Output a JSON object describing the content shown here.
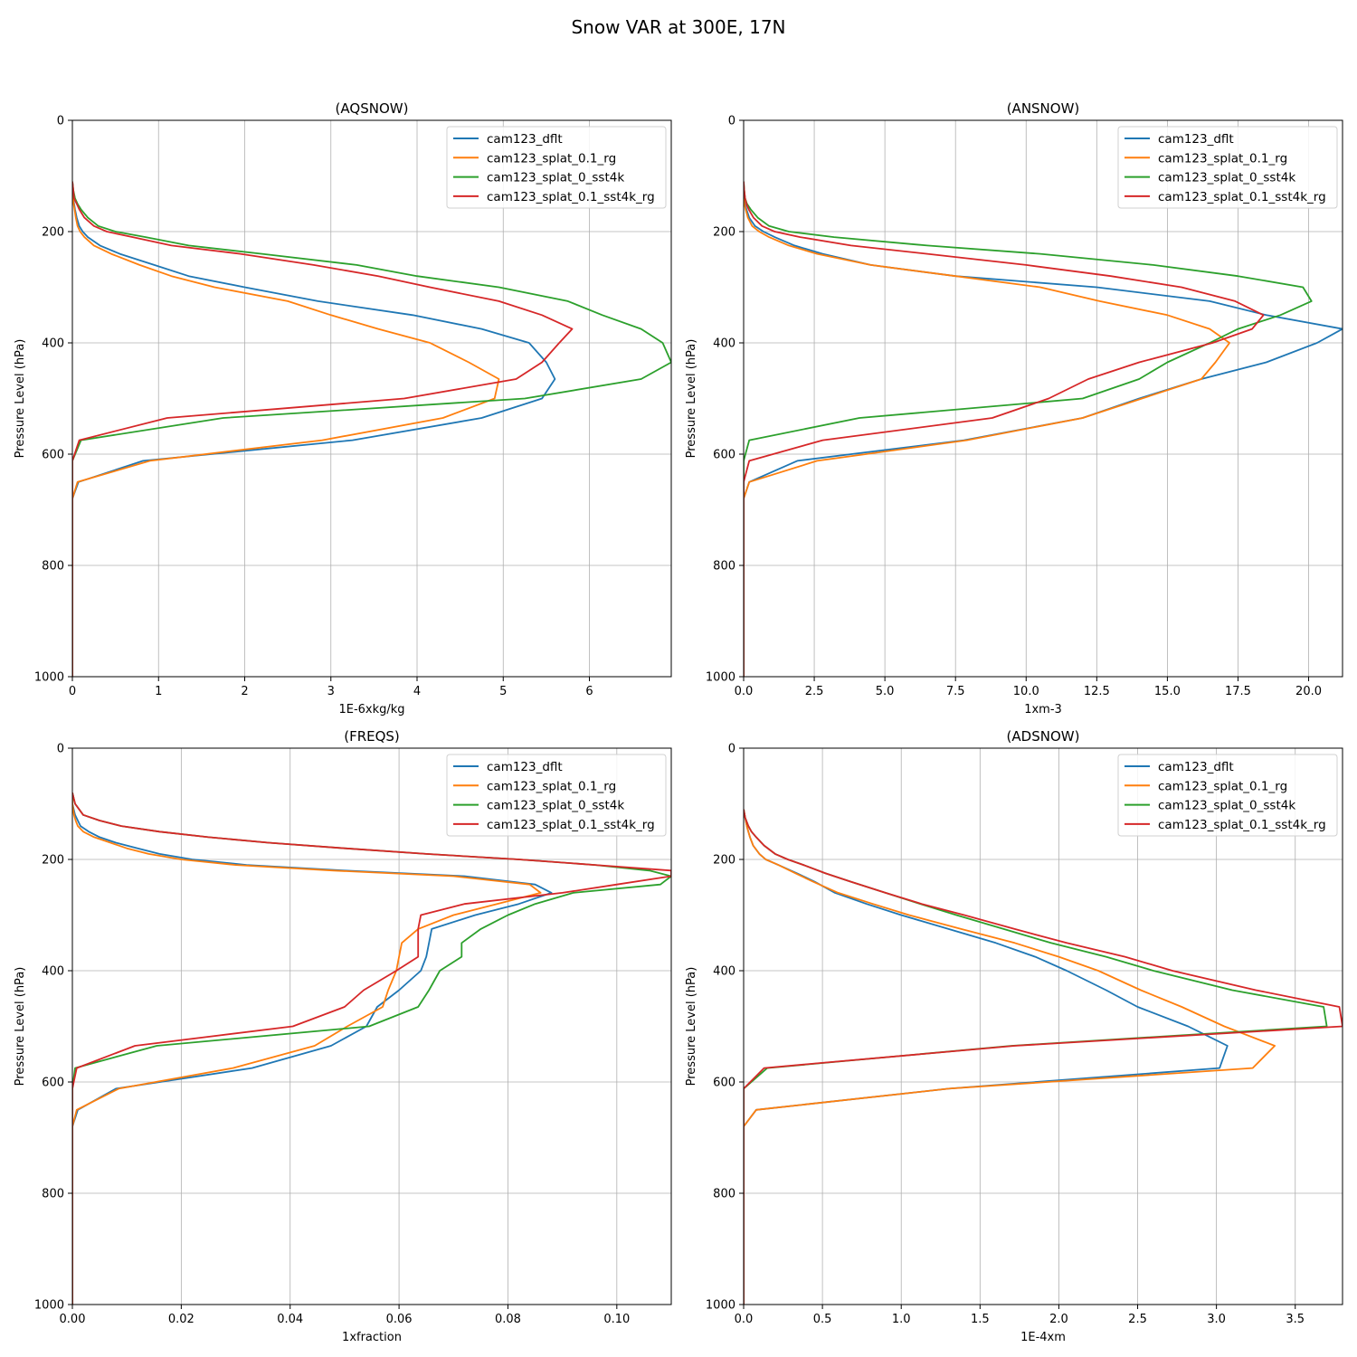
{
  "figure": {
    "title": "Snow VAR at 300E, 17N"
  },
  "colors": {
    "dflt": "#1f77b4",
    "rg": "#ff7f0e",
    "sst4k": "#2ca02c",
    "sst4k_rg": "#d62728"
  },
  "legend_labels": [
    "cam123_dflt",
    "cam123_splat_0.1_rg",
    "cam123_splat_0_sst4k",
    "cam123_splat_0.1_sst4k_rg"
  ],
  "chart_data": [
    {
      "type": "line",
      "title": "(AQSNOW)",
      "xlabel": "1E-6xkg/kg",
      "ylabel": "Pressure Level (hPa)",
      "xlim": [
        0,
        6.95
      ],
      "ylim": [
        1000,
        0
      ],
      "xticks": [
        0,
        1,
        2,
        3,
        4,
        5,
        6
      ],
      "xtick_labels": [
        "0",
        "1",
        "2",
        "3",
        "4",
        "5",
        "6"
      ],
      "yticks": [
        0,
        200,
        400,
        600,
        800,
        1000
      ],
      "ytick_labels": [
        "0",
        "200",
        "400",
        "600",
        "800",
        "1000"
      ],
      "grid": true,
      "legend": "top-right",
      "y": [
        110,
        125,
        140,
        150,
        160,
        175,
        190,
        200,
        210,
        225,
        240,
        260,
        280,
        300,
        325,
        350,
        375,
        400,
        435,
        465,
        500,
        535,
        575,
        612,
        650,
        680,
        700,
        800,
        900,
        1000
      ],
      "series": [
        {
          "name": "cam123_dflt",
          "color": "dflt",
          "values": [
            0,
            0.005,
            0.01,
            0.02,
            0.03,
            0.05,
            0.08,
            0.12,
            0.18,
            0.32,
            0.55,
            0.95,
            1.35,
            2.0,
            2.85,
            3.95,
            4.75,
            5.3,
            5.5,
            5.6,
            5.45,
            4.75,
            3.25,
            0.82,
            0.07,
            0,
            0,
            0,
            0,
            0
          ]
        },
        {
          "name": "cam123_splat_0.1_rg",
          "color": "rg",
          "values": [
            0,
            0.004,
            0.008,
            0.015,
            0.025,
            0.04,
            0.06,
            0.09,
            0.14,
            0.25,
            0.45,
            0.78,
            1.15,
            1.65,
            2.5,
            3.0,
            3.55,
            4.15,
            4.6,
            4.95,
            4.9,
            4.3,
            2.9,
            0.9,
            0.06,
            0,
            0,
            0,
            0,
            0
          ]
        },
        {
          "name": "cam123_splat_0_sst4k",
          "color": "sst4k",
          "values": [
            0,
            0.01,
            0.03,
            0.06,
            0.1,
            0.18,
            0.3,
            0.5,
            0.85,
            1.35,
            2.2,
            3.3,
            4.0,
            4.95,
            5.75,
            6.15,
            6.6,
            6.85,
            6.95,
            6.6,
            5.25,
            1.75,
            0.1,
            0,
            0,
            0,
            0,
            0,
            0,
            0
          ]
        },
        {
          "name": "cam123_splat_0.1_sst4k_rg",
          "color": "sst4k_rg",
          "values": [
            0,
            0.01,
            0.02,
            0.05,
            0.08,
            0.14,
            0.25,
            0.4,
            0.7,
            1.15,
            1.95,
            2.8,
            3.55,
            4.15,
            4.95,
            5.45,
            5.8,
            5.65,
            5.45,
            5.15,
            3.85,
            1.1,
            0.08,
            0,
            0,
            0,
            0,
            0,
            0,
            0
          ]
        }
      ]
    },
    {
      "type": "line",
      "title": "(ANSNOW)",
      "xlabel": "1xm-3",
      "ylabel": "Pressure Level (hPa)",
      "xlim": [
        0,
        21.2
      ],
      "ylim": [
        1000,
        0
      ],
      "xticks": [
        0,
        2.5,
        5,
        7.5,
        10,
        12.5,
        15,
        17.5,
        20
      ],
      "xtick_labels": [
        "0.0",
        "2.5",
        "5.0",
        "7.5",
        "10.0",
        "12.5",
        "15.0",
        "17.5",
        "20.0"
      ],
      "yticks": [
        0,
        200,
        400,
        600,
        800,
        1000
      ],
      "ytick_labels": [
        "0",
        "200",
        "400",
        "600",
        "800",
        "1000"
      ],
      "grid": true,
      "legend": "top-right",
      "y": [
        110,
        125,
        140,
        150,
        160,
        175,
        190,
        200,
        210,
        225,
        240,
        260,
        280,
        300,
        325,
        350,
        375,
        400,
        435,
        465,
        500,
        535,
        575,
        612,
        650,
        680,
        700,
        800,
        900,
        1000
      ],
      "series": [
        {
          "name": "cam123_dflt",
          "color": "dflt",
          "values": [
            0,
            0,
            0.02,
            0.05,
            0.1,
            0.2,
            0.4,
            0.7,
            1.1,
            1.8,
            2.8,
            4.5,
            7.5,
            12.5,
            16.5,
            18.5,
            21.2,
            20.3,
            18.5,
            16.2,
            14.0,
            12.0,
            7.8,
            1.9,
            0.2,
            0,
            0,
            0,
            0,
            0
          ]
        },
        {
          "name": "cam123_splat_0.1_rg",
          "color": "rg",
          "values": [
            0,
            0,
            0.01,
            0.03,
            0.07,
            0.15,
            0.3,
            0.55,
            0.9,
            1.6,
            2.6,
            4.5,
            7.5,
            10.5,
            12.6,
            15.0,
            16.5,
            17.2,
            16.7,
            16.2,
            14.1,
            12.0,
            7.9,
            2.6,
            0.2,
            0,
            0,
            0,
            0,
            0
          ]
        },
        {
          "name": "cam123_splat_0_sst4k",
          "color": "sst4k",
          "values": [
            0,
            0.02,
            0.05,
            0.12,
            0.25,
            0.5,
            0.9,
            1.6,
            3.2,
            6.5,
            10.5,
            14.5,
            17.5,
            19.8,
            20.1,
            19.0,
            17.5,
            16.5,
            15.0,
            14.0,
            12.0,
            4.1,
            0.2,
            0,
            0,
            0,
            0,
            0,
            0,
            0
          ]
        },
        {
          "name": "cam123_splat_0.1_sst4k_rg",
          "color": "sst4k_rg",
          "values": [
            0,
            0.02,
            0.05,
            0.1,
            0.18,
            0.35,
            0.65,
            1.1,
            2.0,
            3.8,
            6.5,
            10.0,
            13.0,
            15.5,
            17.4,
            18.4,
            18.0,
            16.6,
            14.0,
            12.2,
            10.8,
            8.8,
            2.8,
            0.2,
            0,
            0,
            0,
            0,
            0,
            0
          ]
        }
      ]
    },
    {
      "type": "line",
      "title": "(FREQS)",
      "xlabel": "1xfraction",
      "ylabel": "Pressure Level (hPa)",
      "xlim": [
        0,
        0.11
      ],
      "ylim": [
        1000,
        0
      ],
      "xticks": [
        0,
        0.02,
        0.04,
        0.06,
        0.08,
        0.1
      ],
      "xtick_labels": [
        "0.00",
        "0.02",
        "0.04",
        "0.06",
        "0.08",
        "0.10"
      ],
      "yticks": [
        0,
        200,
        400,
        600,
        800,
        1000
      ],
      "ytick_labels": [
        "0",
        "200",
        "400",
        "600",
        "800",
        "1000"
      ],
      "grid": true,
      "legend": "top-right",
      "y": [
        80,
        100,
        120,
        130,
        140,
        150,
        160,
        170,
        180,
        190,
        200,
        210,
        220,
        230,
        245,
        260,
        280,
        300,
        325,
        350,
        375,
        400,
        435,
        465,
        500,
        535,
        575,
        612,
        650,
        680,
        700,
        800,
        900,
        1000
      ],
      "series": [
        {
          "name": "cam123_dflt",
          "color": "dflt",
          "values": [
            0,
            0,
            0.0005,
            0.001,
            0.0015,
            0.003,
            0.005,
            0.008,
            0.012,
            0.016,
            0.022,
            0.032,
            0.05,
            0.072,
            0.085,
            0.088,
            0.082,
            0.074,
            0.066,
            0.0655,
            0.065,
            0.064,
            0.06,
            0.056,
            0.054,
            0.0475,
            0.033,
            0.008,
            0.001,
            0,
            0,
            0,
            0,
            0
          ]
        },
        {
          "name": "cam123_splat_0.1_rg",
          "color": "rg",
          "values": [
            0,
            0,
            0.0003,
            0.0006,
            0.001,
            0.002,
            0.004,
            0.007,
            0.01,
            0.014,
            0.02,
            0.03,
            0.048,
            0.07,
            0.084,
            0.086,
            0.078,
            0.07,
            0.0635,
            0.0605,
            0.06,
            0.0595,
            0.058,
            0.057,
            0.0505,
            0.0445,
            0.0295,
            0.0085,
            0.0008,
            0,
            0,
            0,
            0,
            0
          ]
        },
        {
          "name": "cam123_splat_0_sst4k",
          "color": "sst4k",
          "values": [
            0,
            0.0005,
            0.002,
            0.005,
            0.009,
            0.016,
            0.025,
            0.036,
            0.05,
            0.065,
            0.082,
            0.096,
            0.106,
            0.11,
            0.108,
            0.092,
            0.085,
            0.08,
            0.075,
            0.0715,
            0.0715,
            0.0675,
            0.0655,
            0.0635,
            0.0545,
            0.0155,
            0.0005,
            0,
            0,
            0,
            0,
            0,
            0,
            0
          ]
        },
        {
          "name": "cam123_splat_0.1_sst4k_rg",
          "color": "sst4k_rg",
          "values": [
            0,
            0.0005,
            0.002,
            0.005,
            0.009,
            0.016,
            0.025,
            0.036,
            0.05,
            0.065,
            0.082,
            0.096,
            0.11,
            0.11,
            0.1,
            0.09,
            0.072,
            0.064,
            0.0635,
            0.0635,
            0.0635,
            0.0595,
            0.0535,
            0.05,
            0.0405,
            0.0115,
            0.0008,
            0,
            0,
            0,
            0,
            0,
            0,
            0
          ]
        }
      ]
    },
    {
      "type": "line",
      "title": "(ADSNOW)",
      "xlabel": "1E-4xm",
      "ylabel": "Pressure Level (hPa)",
      "xlim": [
        0,
        3.8
      ],
      "ylim": [
        1000,
        0
      ],
      "xticks": [
        0,
        0.5,
        1,
        1.5,
        2,
        2.5,
        3,
        3.5
      ],
      "xtick_labels": [
        "0.0",
        "0.5",
        "1.0",
        "1.5",
        "2.0",
        "2.5",
        "3.0",
        "3.5"
      ],
      "yticks": [
        0,
        200,
        400,
        600,
        800,
        1000
      ],
      "ytick_labels": [
        "0",
        "200",
        "400",
        "600",
        "800",
        "1000"
      ],
      "grid": true,
      "legend": "top-right",
      "y": [
        110,
        125,
        140,
        150,
        160,
        175,
        190,
        200,
        210,
        225,
        240,
        260,
        280,
        300,
        325,
        350,
        375,
        400,
        435,
        465,
        500,
        535,
        575,
        612,
        650,
        680,
        700,
        800,
        900,
        1000
      ],
      "series": [
        {
          "name": "cam123_dflt",
          "color": "dflt",
          "values": [
            0,
            0.01,
            0.02,
            0.03,
            0.04,
            0.06,
            0.1,
            0.14,
            0.22,
            0.34,
            0.45,
            0.58,
            0.78,
            1.0,
            1.3,
            1.6,
            1.85,
            2.05,
            2.3,
            2.5,
            2.82,
            3.07,
            3.02,
            1.3,
            0.08,
            0,
            0,
            0,
            0,
            0
          ]
        },
        {
          "name": "cam123_splat_0.1_rg",
          "color": "rg",
          "values": [
            0,
            0.01,
            0.02,
            0.03,
            0.04,
            0.06,
            0.1,
            0.14,
            0.22,
            0.33,
            0.44,
            0.6,
            0.82,
            1.05,
            1.38,
            1.72,
            2.0,
            2.25,
            2.52,
            2.78,
            3.05,
            3.37,
            3.23,
            1.3,
            0.08,
            0,
            0,
            0,
            0,
            0
          ]
        },
        {
          "name": "cam123_splat_0_sst4k",
          "color": "sst4k",
          "values": [
            0,
            0.01,
            0.03,
            0.05,
            0.08,
            0.13,
            0.2,
            0.28,
            0.38,
            0.52,
            0.68,
            0.9,
            1.12,
            1.35,
            1.65,
            1.95,
            2.3,
            2.6,
            3.1,
            3.68,
            3.7,
            1.7,
            0.15,
            0,
            0,
            0,
            0,
            0,
            0,
            0
          ]
        },
        {
          "name": "cam123_splat_0.1_sst4k_rg",
          "color": "sst4k_rg",
          "values": [
            0,
            0.01,
            0.03,
            0.05,
            0.08,
            0.13,
            0.2,
            0.28,
            0.38,
            0.52,
            0.68,
            0.9,
            1.13,
            1.4,
            1.72,
            2.05,
            2.42,
            2.72,
            3.25,
            3.78,
            3.8,
            1.72,
            0.13,
            0,
            0,
            0,
            0,
            0,
            0,
            0
          ]
        }
      ]
    }
  ]
}
